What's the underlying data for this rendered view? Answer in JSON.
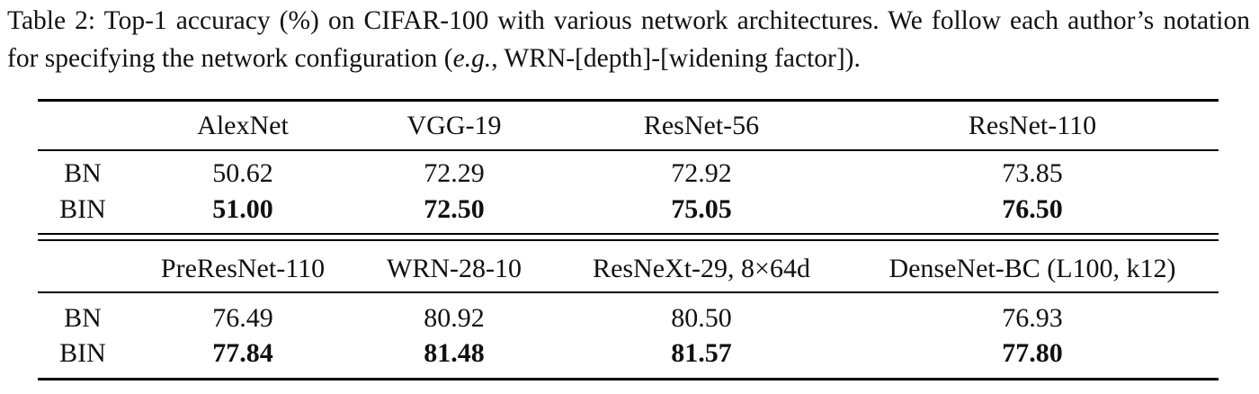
{
  "caption": {
    "before": "Table 2: Top-1 accuracy (%) on CIFAR-100 with various network architectures. We follow each author’s notation for specifying the network configuration (",
    "italic": "e.g.",
    "after": ", WRN-[depth]-[widening factor])."
  },
  "table": {
    "blocks": [
      {
        "header": [
          "AlexNet",
          "VGG-19",
          "ResNet-56",
          "ResNet-110"
        ],
        "rows": [
          {
            "label": "BN",
            "values": [
              "50.62",
              "72.29",
              "72.92",
              "73.85"
            ]
          },
          {
            "label": "BIN",
            "values": [
              "51.00",
              "72.50",
              "75.05",
              "76.50"
            ]
          }
        ]
      },
      {
        "header": [
          "PreResNet-110",
          "WRN-28-10",
          "ResNeXt-29, 8×64d",
          "DenseNet-BC (L100, k12)"
        ],
        "rows": [
          {
            "label": "BN",
            "values": [
              "76.49",
              "80.92",
              "80.50",
              "76.93"
            ]
          },
          {
            "label": "BIN",
            "values": [
              "77.84",
              "81.48",
              "81.57",
              "77.80"
            ]
          }
        ]
      }
    ]
  }
}
